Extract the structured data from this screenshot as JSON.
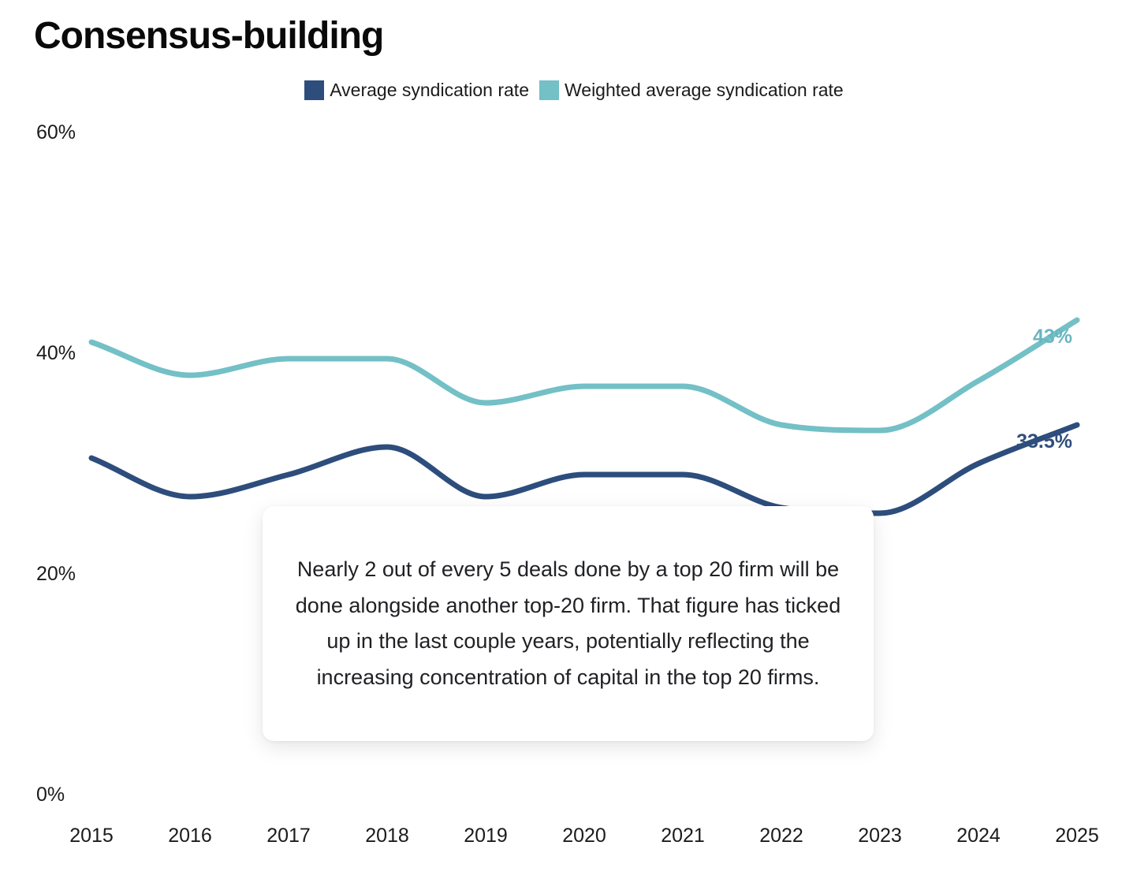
{
  "title": "Consensus-building",
  "legend": [
    {
      "label": "Average syndication rate",
      "color": "#2D4D7C"
    },
    {
      "label": "Weighted average syndication rate",
      "color": "#73C0C6"
    }
  ],
  "annotation": {
    "text": "Nearly 2 out of every 5 deals done by a top 20 firm will be done alongside another top-20 firm. That figure has ticked up in the last couple years, potentially reflecting the increasing concentration of capital in the top 20 firms."
  },
  "chart_data": {
    "type": "line",
    "title": "Consensus-building",
    "x": [
      2015,
      2016,
      2017,
      2018,
      2019,
      2020,
      2021,
      2022,
      2023,
      2024,
      2025
    ],
    "xtick_labels": [
      "2015",
      "2016",
      "2017",
      "2018",
      "2019",
      "2020",
      "2021",
      "2022",
      "2023",
      "2024",
      "2025"
    ],
    "series": [
      {
        "name": "Average syndication rate",
        "color": "#2D4D7C",
        "values": [
          30.5,
          27,
          29,
          31.5,
          27,
          29,
          29,
          26,
          25.5,
          30,
          33.5
        ],
        "end_label": "33.5%",
        "end_label_color": "#2F4F7D"
      },
      {
        "name": "Weighted average syndication rate",
        "color": "#73C0C6",
        "values": [
          41,
          38,
          39.5,
          39.5,
          35.5,
          37,
          37,
          33.5,
          33,
          37.5,
          43
        ],
        "end_label": "43%",
        "end_label_color": "#69B6C0"
      }
    ],
    "ylim": [
      0,
      60
    ],
    "yticks": [
      {
        "value": 60,
        "label": "60%"
      },
      {
        "value": 40,
        "label": "40%"
      },
      {
        "value": 20,
        "label": "20%"
      },
      {
        "value": 0,
        "label": "0%"
      }
    ],
    "grid": false,
    "legend_position": "top"
  }
}
